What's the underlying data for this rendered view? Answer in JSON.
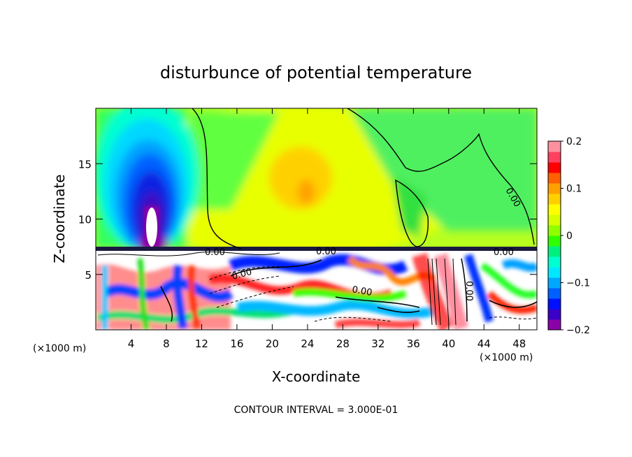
{
  "chart_data": {
    "type": "heatmap",
    "title": "disturbunce of potential temperature",
    "xlabel": "X-coordinate",
    "ylabel": "Z-coordinate",
    "x_unit_left": "(×1000 m)",
    "x_unit_right": "(×1000 m)",
    "xlim": [
      0,
      50
    ],
    "ylim": [
      0,
      20
    ],
    "x_ticks": [
      4,
      8,
      12,
      16,
      20,
      24,
      28,
      32,
      36,
      40,
      44,
      48
    ],
    "y_ticks": [
      5,
      10,
      15
    ],
    "colorbar": {
      "range": [
        -0.2,
        0.2
      ],
      "ticks": [
        0.2,
        0.1,
        0,
        -0.1,
        -0.2
      ],
      "tick_labels": [
        "0.2",
        "0.1",
        "0",
        "−0.1",
        "−0.2"
      ],
      "colors": [
        "#8b00a8",
        "#3a00c8",
        "#0010ff",
        "#0060ff",
        "#00a8ff",
        "#00e8ff",
        "#00ffd0",
        "#00f080",
        "#30ff00",
        "#90ff00",
        "#d8ff00",
        "#ffff00",
        "#ffd000",
        "#ffa000",
        "#ff6000",
        "#ff0000",
        "#ff4060",
        "#ff90a0"
      ]
    },
    "contour_labels": [
      "0.00",
      "0.00",
      "0.00",
      "0.00",
      "0.00",
      "0.00",
      "0.00"
    ],
    "footer": "CONTOUR INTERVAL = 3.000E-01"
  }
}
